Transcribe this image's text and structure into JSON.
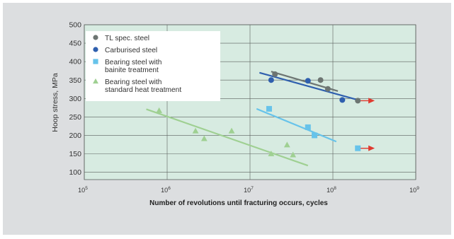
{
  "chart_data": {
    "type": "scatter",
    "xlabel": "Number of revolutions until fracturing occurs, cycles",
    "ylabel": "Hoop stress, MPa",
    "xscale": "log",
    "xlim": [
      100000,
      1000000000
    ],
    "ylim": [
      80,
      500
    ],
    "x_ticks": [
      {
        "value": 100000,
        "base": "10",
        "exp": "5"
      },
      {
        "value": 1000000,
        "base": "10",
        "exp": "6"
      },
      {
        "value": 10000000,
        "base": "10",
        "exp": "7"
      },
      {
        "value": 100000000,
        "base": "10",
        "exp": "8"
      },
      {
        "value": 1000000000,
        "base": "10",
        "exp": "9"
      }
    ],
    "y_ticks": [
      100,
      150,
      200,
      250,
      300,
      350,
      400,
      450,
      500
    ],
    "grid": true,
    "legend_position": "top-left",
    "arrow_color": "#e03a2f",
    "series": [
      {
        "name": "TL spec. steel",
        "marker": "circle",
        "color": "#6d7572",
        "points": [
          [
            20000000,
            366
          ],
          [
            71000000,
            350
          ],
          [
            87000000,
            326
          ],
          [
            200000000,
            294
          ]
        ],
        "trend": [
          [
            18000000,
            373
          ],
          [
            115000000,
            320
          ]
        ],
        "runout": {
          "from": [
            200000000,
            294
          ],
          "to": [
            320000000,
            294
          ]
        }
      },
      {
        "name": "Carburised steel",
        "marker": "circle",
        "color": "#2f5fae",
        "points": [
          [
            18000000,
            350
          ],
          [
            50000000,
            348
          ],
          [
            130000000,
            296
          ]
        ],
        "trend": [
          [
            13000000,
            370
          ],
          [
            200000000,
            296
          ]
        ]
      },
      {
        "name": "Bearing steel with|bainite treatment",
        "marker": "square",
        "color": "#67c3ea",
        "points": [
          [
            17000000,
            272
          ],
          [
            50000000,
            222
          ],
          [
            60000000,
            200
          ],
          [
            200000000,
            165
          ]
        ],
        "trend": [
          [
            12000000,
            272
          ],
          [
            110000000,
            183
          ]
        ],
        "runout": {
          "from": [
            200000000,
            165
          ],
          "to": [
            320000000,
            165
          ]
        }
      },
      {
        "name": "Bearing steel with|standard heat treatment",
        "marker": "triangle",
        "color": "#9fd092",
        "points": [
          [
            800000,
            267
          ],
          [
            2200000,
            212
          ],
          [
            2800000,
            191
          ],
          [
            6000000,
            212
          ],
          [
            18000000,
            150
          ],
          [
            28000000,
            174
          ],
          [
            33000000,
            147
          ]
        ],
        "trend": [
          [
            560000,
            271
          ],
          [
            50000000,
            118
          ]
        ]
      }
    ]
  }
}
